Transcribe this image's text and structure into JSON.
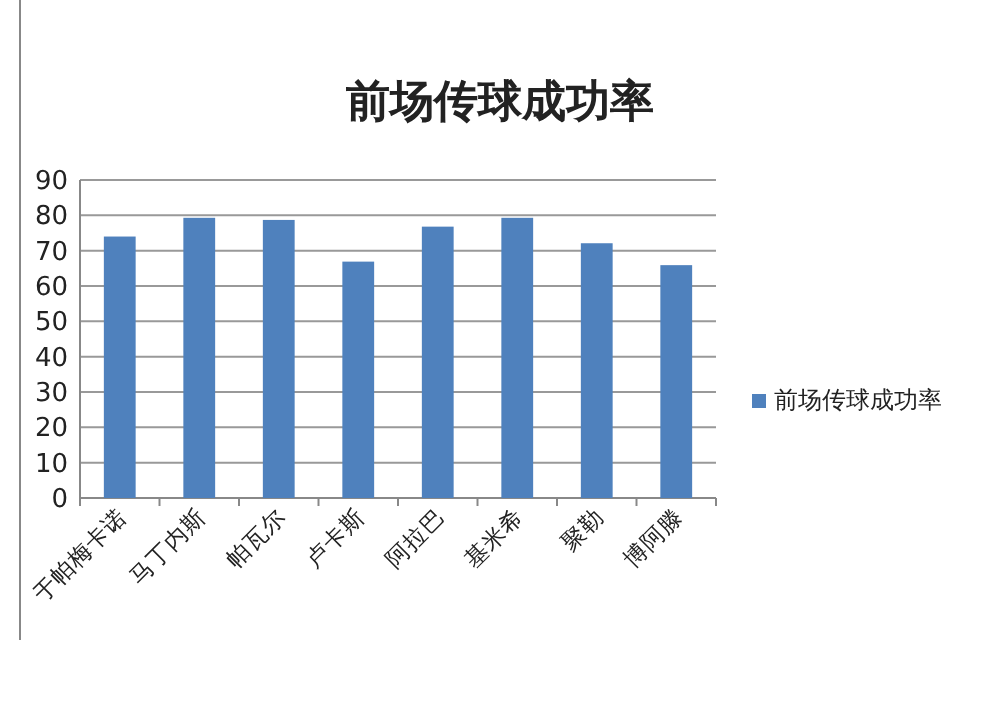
{
  "chart_data": {
    "type": "bar",
    "title": "前场传球成功率",
    "categories": [
      "于帕梅卡诺",
      "马丁内斯",
      "帕瓦尔",
      "卢卡斯",
      "阿拉巴",
      "基米希",
      "聚勒",
      "博阿滕"
    ],
    "series": [
      {
        "name": "前场传球成功率",
        "color": "#4f81bd",
        "values": [
          74,
          79.3,
          78.7,
          66.9,
          76.8,
          79.3,
          72.1,
          65.9
        ]
      }
    ],
    "ylim": [
      0,
      90
    ],
    "yticks": [
      0,
      10,
      20,
      30,
      40,
      50,
      60,
      70,
      80,
      90
    ],
    "grid": "y",
    "legend": "right"
  }
}
